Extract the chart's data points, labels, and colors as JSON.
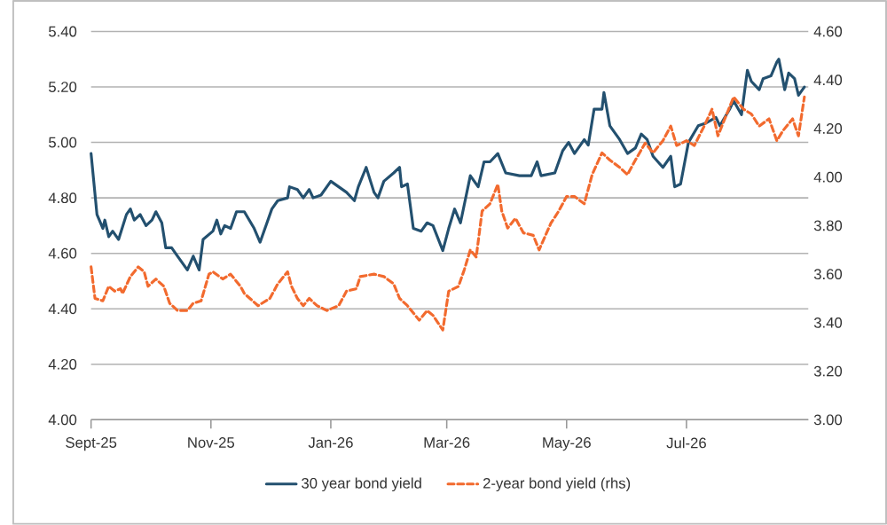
{
  "chart_data": {
    "type": "line",
    "xlim": [
      "2025-09-01",
      "2026-09-01"
    ],
    "xticks": [
      {
        "value": "2025-09-01",
        "label": "Sept-25"
      },
      {
        "value": "2025-11-01",
        "label": "Nov-25"
      },
      {
        "value": "2026-01-01",
        "label": "Jan-26"
      },
      {
        "value": "2026-03-01",
        "label": "Mar-26"
      },
      {
        "value": "2026-05-01",
        "label": "May-26"
      },
      {
        "value": "2026-07-01",
        "label": "Jul-26"
      }
    ],
    "ylim": [
      4.0,
      5.4
    ],
    "yticks": [
      {
        "value": 4.0,
        "label": "4.00"
      },
      {
        "value": 4.2,
        "label": "4.20"
      },
      {
        "value": 4.4,
        "label": "4.40"
      },
      {
        "value": 4.6,
        "label": "4.60"
      },
      {
        "value": 4.8,
        "label": "4.80"
      },
      {
        "value": 5.0,
        "label": "5.00"
      },
      {
        "value": 5.2,
        "label": "5.20"
      },
      {
        "value": 5.4,
        "label": "5.40"
      }
    ],
    "y2lim": [
      3.0,
      4.6
    ],
    "y2ticks": [
      {
        "value": 3.0,
        "label": "3.00"
      },
      {
        "value": 3.2,
        "label": "3.20"
      },
      {
        "value": 3.4,
        "label": "3.40"
      },
      {
        "value": 3.6,
        "label": "3.60"
      },
      {
        "value": 3.8,
        "label": "3.80"
      },
      {
        "value": 4.0,
        "label": "4.00"
      },
      {
        "value": 4.2,
        "label": "4.20"
      },
      {
        "value": 4.4,
        "label": "4.40"
      },
      {
        "value": 4.6,
        "label": "4.60"
      }
    ],
    "grid": "y",
    "legend": "bottom",
    "series": [
      {
        "name": "30 year bond yield",
        "color": "#23506f",
        "line_style": "solid",
        "x": [
          "2025-09-01",
          "2025-09-04",
          "2025-09-07",
          "2025-09-08",
          "2025-09-10",
          "2025-09-12",
          "2025-09-15",
          "2025-09-19",
          "2025-09-21",
          "2025-09-23",
          "2025-09-26",
          "2025-09-29",
          "2025-10-02",
          "2025-10-04",
          "2025-10-07",
          "2025-10-09",
          "2025-10-12",
          "2025-10-15",
          "2025-10-20",
          "2025-10-23",
          "2025-10-26",
          "2025-10-28",
          "2025-11-02",
          "2025-11-04",
          "2025-11-06",
          "2025-11-08",
          "2025-11-11",
          "2025-11-14",
          "2025-11-18",
          "2025-11-23",
          "2025-11-26",
          "2025-11-29",
          "2025-12-02",
          "2025-12-05",
          "2025-12-10",
          "2025-12-11",
          "2025-12-15",
          "2025-12-18",
          "2025-12-21",
          "2025-12-23",
          "2025-12-27",
          "2026-01-01",
          "2026-01-05",
          "2026-01-09",
          "2026-01-13",
          "2026-01-15",
          "2026-01-19",
          "2026-01-23",
          "2026-01-25",
          "2026-01-28",
          "2026-02-02",
          "2026-02-05",
          "2026-02-06",
          "2026-02-09",
          "2026-02-12",
          "2026-02-16",
          "2026-02-19",
          "2026-02-22",
          "2026-02-27",
          "2026-03-02",
          "2026-03-05",
          "2026-03-08",
          "2026-03-13",
          "2026-03-17",
          "2026-03-20",
          "2026-03-23",
          "2026-03-27",
          "2026-03-31",
          "2026-04-07",
          "2026-04-13",
          "2026-04-16",
          "2026-04-18",
          "2026-04-25",
          "2026-04-29",
          "2026-05-02",
          "2026-05-05",
          "2026-05-10",
          "2026-05-12",
          "2026-05-15",
          "2026-05-19",
          "2026-05-20",
          "2026-05-23",
          "2026-05-28",
          "2026-06-01",
          "2026-06-05",
          "2026-06-08",
          "2026-06-11",
          "2026-06-14",
          "2026-06-19",
          "2026-06-23",
          "2026-06-25",
          "2026-06-28",
          "2026-07-02",
          "2026-07-07",
          "2026-07-11",
          "2026-07-16",
          "2026-07-18",
          "2026-07-23",
          "2026-07-25",
          "2026-07-29",
          "2026-08-01",
          "2026-08-03",
          "2026-08-07",
          "2026-08-09",
          "2026-08-13",
          "2026-08-16",
          "2026-08-17",
          "2026-08-20",
          "2026-08-22",
          "2026-08-25",
          "2026-08-27",
          "2026-08-30"
        ],
        "values": [
          4.96,
          4.74,
          4.69,
          4.72,
          4.66,
          4.68,
          4.65,
          4.74,
          4.76,
          4.72,
          4.74,
          4.7,
          4.72,
          4.75,
          4.71,
          4.62,
          4.62,
          4.59,
          4.54,
          4.59,
          4.54,
          4.65,
          4.68,
          4.72,
          4.67,
          4.7,
          4.69,
          4.75,
          4.75,
          4.69,
          4.64,
          4.7,
          4.76,
          4.79,
          4.8,
          4.84,
          4.83,
          4.8,
          4.83,
          4.8,
          4.81,
          4.86,
          4.84,
          4.82,
          4.79,
          4.84,
          4.91,
          4.82,
          4.8,
          4.86,
          4.89,
          4.91,
          4.84,
          4.85,
          4.69,
          4.68,
          4.71,
          4.7,
          4.61,
          4.69,
          4.76,
          4.71,
          4.88,
          4.84,
          4.93,
          4.93,
          4.96,
          4.89,
          4.88,
          4.88,
          4.93,
          4.88,
          4.89,
          4.97,
          5.0,
          4.96,
          5.01,
          4.99,
          5.12,
          5.12,
          5.18,
          5.06,
          5.01,
          4.96,
          4.98,
          5.03,
          5.01,
          4.95,
          4.91,
          4.95,
          4.84,
          4.85,
          5.0,
          5.06,
          5.07,
          5.09,
          5.06,
          5.12,
          5.15,
          5.1,
          5.26,
          5.22,
          5.19,
          5.23,
          5.24,
          5.29,
          5.3,
          5.19,
          5.25,
          5.23,
          5.17,
          5.2
        ]
      },
      {
        "name": "2-year bond yield (rhs)",
        "color": "#f26a2e",
        "line_style": "dashed",
        "axis": "y2",
        "x": [
          "2025-09-01",
          "2025-09-03",
          "2025-09-07",
          "2025-09-10",
          "2025-09-13",
          "2025-09-16",
          "2025-09-17",
          "2025-09-21",
          "2025-09-25",
          "2025-09-28",
          "2025-09-30",
          "2025-10-04",
          "2025-10-08",
          "2025-10-11",
          "2025-10-15",
          "2025-10-20",
          "2025-10-23",
          "2025-10-27",
          "2025-10-31",
          "2025-11-02",
          "2025-11-07",
          "2025-11-11",
          "2025-11-16",
          "2025-11-18",
          "2025-11-25",
          "2025-12-01",
          "2025-12-05",
          "2025-12-10",
          "2025-12-12",
          "2025-12-15",
          "2025-12-18",
          "2025-12-21",
          "2025-12-25",
          "2025-12-30",
          "2026-01-05",
          "2026-01-09",
          "2026-01-14",
          "2026-01-16",
          "2026-01-23",
          "2026-01-28",
          "2026-02-02",
          "2026-02-05",
          "2026-02-09",
          "2026-02-15",
          "2026-02-19",
          "2026-02-22",
          "2026-02-27",
          "2026-03-02",
          "2026-03-07",
          "2026-03-10",
          "2026-03-13",
          "2026-03-16",
          "2026-03-19",
          "2026-03-23",
          "2026-03-27",
          "2026-03-29",
          "2026-04-01",
          "2026-04-05",
          "2026-04-09",
          "2026-04-14",
          "2026-04-17",
          "2026-04-23",
          "2026-04-27",
          "2026-05-01",
          "2026-05-05",
          "2026-05-10",
          "2026-05-14",
          "2026-05-19",
          "2026-05-23",
          "2026-05-28",
          "2026-06-01",
          "2026-06-05",
          "2026-06-10",
          "2026-06-14",
          "2026-06-19",
          "2026-06-23",
          "2026-06-26",
          "2026-07-01",
          "2026-07-05",
          "2026-07-10",
          "2026-07-14",
          "2026-07-17",
          "2026-07-21",
          "2026-07-25",
          "2026-07-30",
          "2026-08-03",
          "2026-08-07",
          "2026-08-12",
          "2026-08-16",
          "2026-08-19",
          "2026-08-24",
          "2026-08-27",
          "2026-08-30"
        ],
        "values": [
          3.63,
          3.5,
          3.49,
          3.55,
          3.53,
          3.54,
          3.52,
          3.59,
          3.63,
          3.61,
          3.55,
          3.58,
          3.55,
          3.48,
          3.45,
          3.45,
          3.48,
          3.49,
          3.6,
          3.61,
          3.58,
          3.6,
          3.55,
          3.52,
          3.47,
          3.5,
          3.56,
          3.61,
          3.55,
          3.5,
          3.47,
          3.5,
          3.47,
          3.45,
          3.47,
          3.53,
          3.54,
          3.59,
          3.6,
          3.59,
          3.56,
          3.5,
          3.47,
          3.41,
          3.45,
          3.43,
          3.37,
          3.53,
          3.55,
          3.62,
          3.7,
          3.67,
          3.86,
          3.89,
          3.97,
          3.86,
          3.79,
          3.83,
          3.77,
          3.76,
          3.7,
          3.81,
          3.86,
          3.92,
          3.92,
          3.89,
          4.01,
          4.1,
          4.07,
          4.04,
          4.01,
          4.07,
          4.14,
          4.1,
          4.15,
          4.21,
          4.13,
          4.15,
          4.13,
          4.21,
          4.28,
          4.17,
          4.25,
          4.33,
          4.28,
          4.26,
          4.21,
          4.24,
          4.15,
          4.19,
          4.24,
          4.17,
          4.33
        ]
      }
    ]
  }
}
